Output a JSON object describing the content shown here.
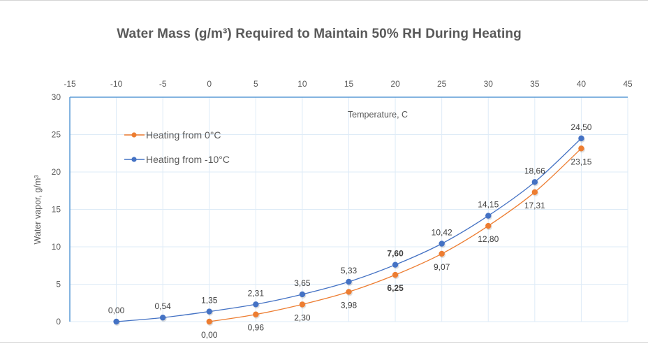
{
  "chart_data": {
    "type": "line",
    "title": "Water Mass (g/m³) Required to Maintain 50% RH During Heating",
    "xlabel": "Temperature, C",
    "ylabel": "Water vapor, g/m³",
    "xlim": [
      -15,
      45
    ],
    "ylim": [
      0,
      30
    ],
    "x_ticks": [
      "-15",
      "-10",
      "-5",
      "0",
      "5",
      "10",
      "15",
      "20",
      "25",
      "30",
      "35",
      "40",
      "45"
    ],
    "x_tick_values": [
      -15,
      -10,
      -5,
      0,
      5,
      10,
      15,
      20,
      25,
      30,
      35,
      40,
      45
    ],
    "y_ticks": [
      "0",
      "5",
      "10",
      "15",
      "20",
      "25",
      "30"
    ],
    "y_tick_values": [
      0,
      5,
      10,
      15,
      20,
      25,
      30
    ],
    "x_axis_position": "top",
    "grid": true,
    "legend_position": "top-left",
    "series": [
      {
        "name": "Heating from 0°C",
        "color": "#ED7D31",
        "x": [
          0,
          5,
          10,
          15,
          20,
          25,
          30,
          35,
          40
        ],
        "values": [
          0.0,
          0.96,
          2.3,
          3.98,
          6.25,
          9.07,
          12.8,
          17.31,
          23.15
        ],
        "labels": [
          "0,00",
          "0,96",
          "2,30",
          "3,98",
          "6,25",
          "9,07",
          "12,80",
          "17,31",
          "23,15"
        ],
        "label_position": "below",
        "bold_labels": [
          "6,25"
        ]
      },
      {
        "name": "Heating from -10°C",
        "color": "#4472C4",
        "x": [
          -10,
          -5,
          0,
          5,
          10,
          15,
          20,
          25,
          30,
          35,
          40
        ],
        "values": [
          0.0,
          0.54,
          1.35,
          2.31,
          3.65,
          5.33,
          7.6,
          10.42,
          14.15,
          18.66,
          24.5
        ],
        "labels": [
          "0,00",
          "0,54",
          "1,35",
          "2,31",
          "3,65",
          "5,33",
          "7,60",
          "10,42",
          "14,15",
          "18,66",
          "24,50"
        ],
        "label_position": "above",
        "bold_labels": [
          "7,60"
        ]
      }
    ]
  },
  "colors": {
    "axis": "#5B9BD5",
    "grid": "#DEEBF7",
    "text": "#595959"
  }
}
